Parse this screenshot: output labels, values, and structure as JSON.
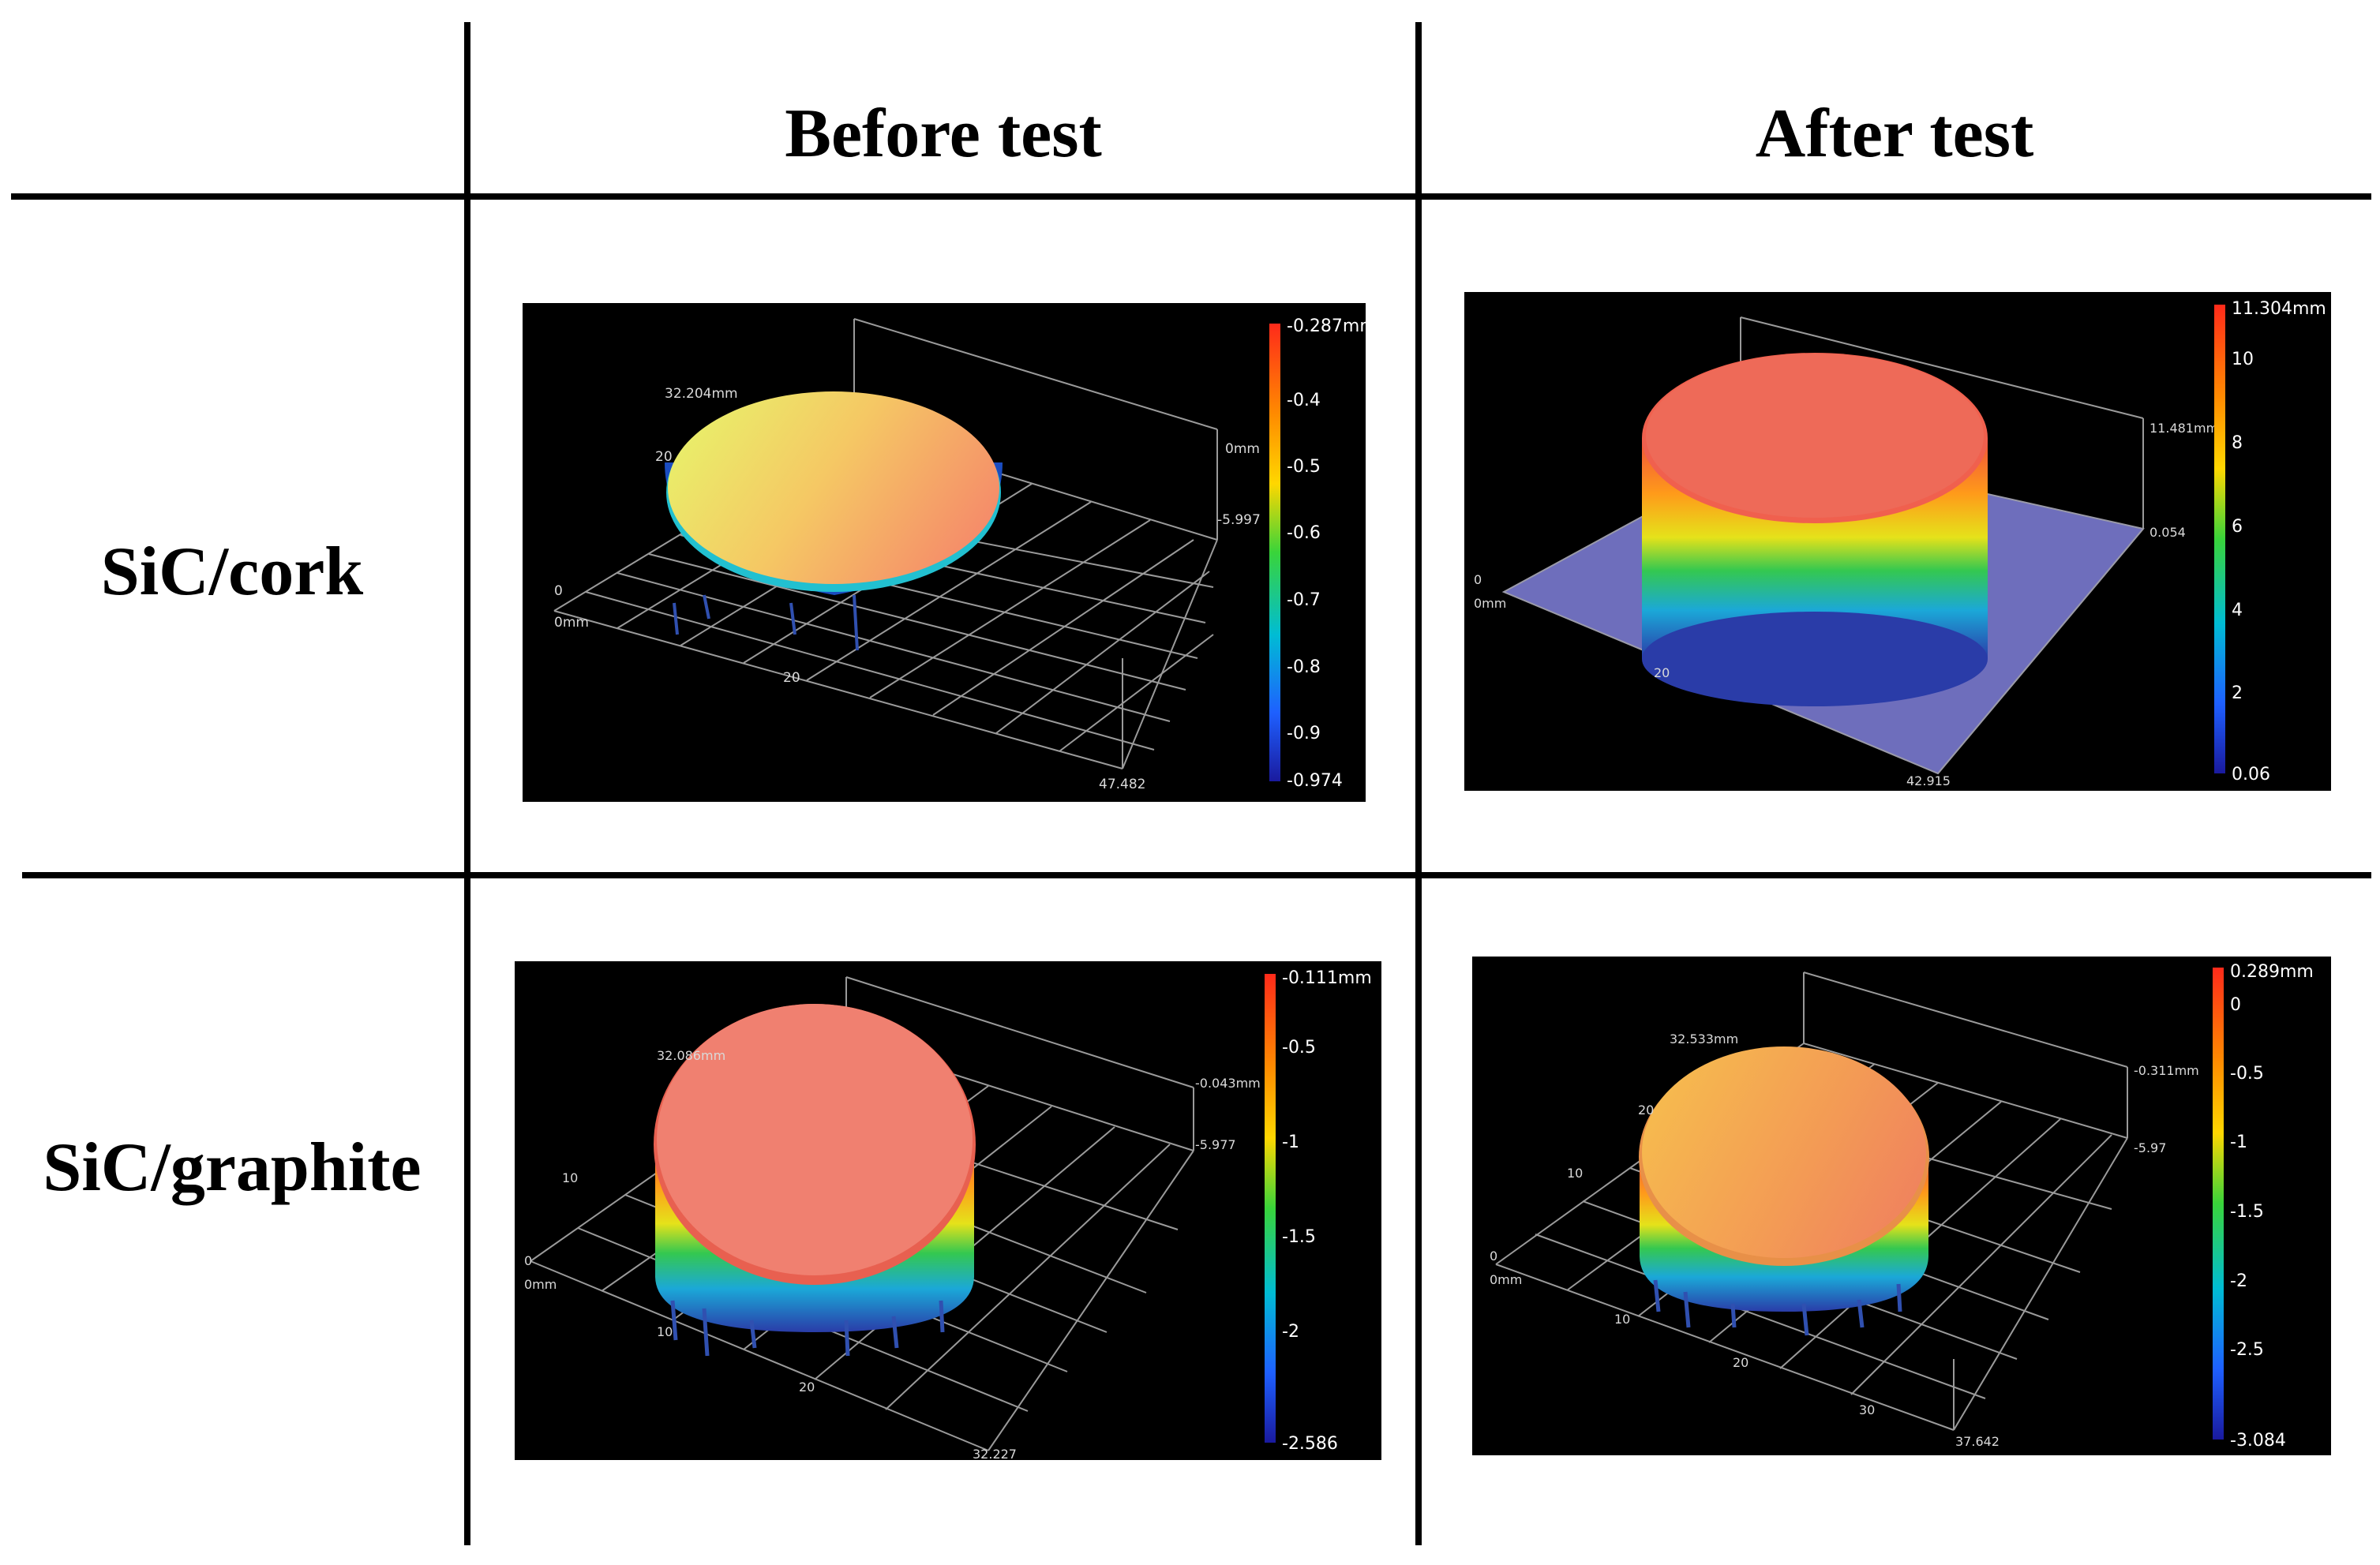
{
  "headers": {
    "before": "Before test",
    "after": "After test"
  },
  "rows": [
    {
      "label": "SiC/cork",
      "before": {
        "scale": [
          "-0.287mm",
          "-0.4",
          "-0.5",
          "-0.6",
          "-0.7",
          "-0.8",
          "-0.9",
          "-0.974"
        ],
        "axis": {
          "y_max": "32.204mm",
          "y_mid": "20",
          "origin_y": "0",
          "origin_x": "0mm",
          "x_mid": "20",
          "x_max": "47.482",
          "z_top": "0mm",
          "z_bottom": "-5.997"
        }
      },
      "after": {
        "scale": [
          "11.304mm",
          "10",
          "8",
          "6",
          "4",
          "2",
          "0.06"
        ],
        "axis": {
          "origin_y": "0",
          "origin_x": "0mm",
          "x_mid": "20",
          "x_max": "42.915",
          "z_top": "11.481mm",
          "z_bottom": "0.054"
        }
      }
    },
    {
      "label": "SiC/graphite",
      "before": {
        "scale": [
          "-0.111mm",
          "-0.5",
          "-1",
          "-1.5",
          "-2",
          "-2.586"
        ],
        "axis": {
          "y_max": "32.086mm",
          "y_mid": "10",
          "origin_y": "0",
          "origin_x": "0mm",
          "x_1": "10",
          "x_2": "20",
          "x_max": "32.227",
          "z_top": "-0.043mm",
          "z_bottom": "-5.977"
        }
      },
      "after": {
        "scale": [
          "0.289mm",
          "0",
          "-0.5",
          "-1",
          "-1.5",
          "-2",
          "-2.5",
          "-3.084"
        ],
        "axis": {
          "y_max": "32.533mm",
          "y_mid": "20",
          "y_low": "10",
          "origin_y": "0",
          "origin_x": "0mm",
          "x_1": "10",
          "x_2": "20",
          "x_3": "30",
          "x_max": "37.642",
          "z_top": "-0.311mm",
          "z_bottom": "-5.97"
        }
      }
    }
  ]
}
